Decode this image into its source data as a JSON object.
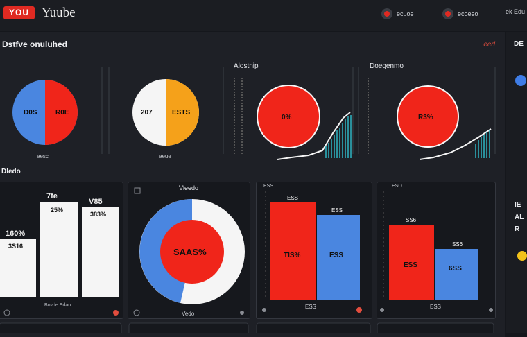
{
  "app": {
    "logo_badge": "YOU",
    "title": "Yuube",
    "nav": [
      "ecuoe",
      "ecoeeo",
      "ek Edu"
    ]
  },
  "overview": {
    "title": "Dstfve onuluhed",
    "alert": "eed",
    "pie1": {
      "label_left": "D0S",
      "label_right": "R0E",
      "caption": "eesc"
    },
    "pie2": {
      "label_left": "207",
      "label_right": "ESTS",
      "caption": "eeue"
    },
    "donut1": {
      "title": "Alostnip",
      "value": "0%"
    },
    "donut2": {
      "title": "Doegenmo",
      "value": "R3%"
    }
  },
  "details": {
    "title": "Dledo",
    "bars": {
      "bar1": "160%",
      "bar1_sub": "3S16",
      "bar2": "25%",
      "bar2_top": "7fe",
      "bar3": "383%",
      "bar3_top": "V85",
      "caption": "Bovde Edau"
    },
    "circle": {
      "title": "Vleedo",
      "value": "SAAS%",
      "caption": "Vedo"
    },
    "bars2": {
      "header": "ESS",
      "red": "TIS%",
      "blue": "ESS",
      "blue_top": "ESS",
      "caption": "ESS"
    },
    "bars3": {
      "header": "ESO",
      "red_top": "SS6",
      "red": "ESS",
      "blue": "6SS",
      "blue_top": "SS6",
      "caption": "ESS"
    }
  },
  "rail": {
    "top": "DE",
    "mid": "IE",
    "mid2": "AL",
    "mid3": "R"
  },
  "colors": {
    "red": "#f0251a",
    "blue": "#4a86e0",
    "orange": "#f5a11a",
    "white": "#f5f5f5",
    "teal": "#2fb6c4"
  }
}
